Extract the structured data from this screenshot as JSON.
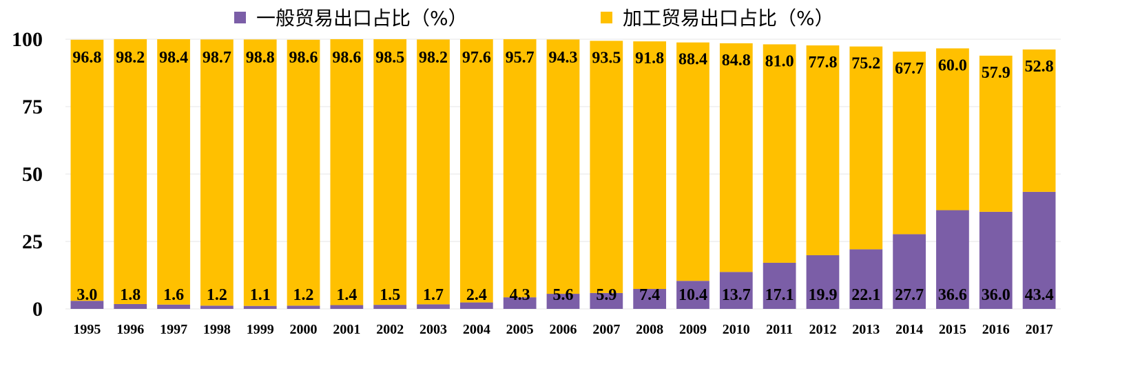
{
  "chart_data": {
    "type": "bar",
    "stacked": true,
    "categories": [
      "1995",
      "1996",
      "1997",
      "1998",
      "1999",
      "2000",
      "2001",
      "2002",
      "2003",
      "2004",
      "2005",
      "2006",
      "2007",
      "2008",
      "2009",
      "2010",
      "2011",
      "2012",
      "2013",
      "2014",
      "2015",
      "2016",
      "2017"
    ],
    "series": [
      {
        "name": "一般贸易出口占比（%）",
        "color": "#7B5EA7",
        "values": [
          3.0,
          1.8,
          1.6,
          1.2,
          1.1,
          1.2,
          1.4,
          1.5,
          1.7,
          2.4,
          4.3,
          5.6,
          5.9,
          7.4,
          10.4,
          13.7,
          17.1,
          19.9,
          22.1,
          27.7,
          36.6,
          36.0,
          43.4
        ]
      },
      {
        "name": "加工贸易出口占比（%）",
        "color": "#FFC000",
        "values": [
          96.8,
          98.2,
          98.4,
          98.7,
          98.8,
          98.6,
          98.6,
          98.5,
          98.2,
          97.6,
          95.7,
          94.3,
          93.5,
          91.8,
          88.4,
          84.8,
          81.0,
          77.8,
          75.2,
          67.7,
          60.0,
          57.9,
          52.8
        ]
      }
    ],
    "yticks": [
      "0",
      "25",
      "50",
      "75",
      "100"
    ],
    "ylim": [
      0,
      100
    ],
    "grid": true,
    "legend": "top-center",
    "title": "",
    "xlabel": "",
    "ylabel": ""
  }
}
